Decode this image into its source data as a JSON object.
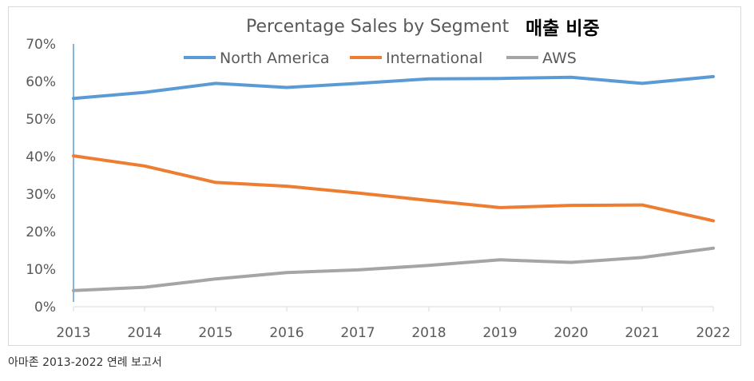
{
  "korean_title": "매출 비중",
  "caption": "아마존 2013-2022 연례 보고서",
  "chart_data": {
    "type": "line",
    "title": "Percentage Sales by Segment",
    "x": [
      "2013",
      "2014",
      "2015",
      "2016",
      "2017",
      "2018",
      "2019",
      "2020",
      "2021",
      "2022"
    ],
    "xlabel": "",
    "ylabel": "",
    "ylim": [
      0,
      70
    ],
    "yticks": [
      "0%",
      "10%",
      "20%",
      "30%",
      "40%",
      "50%",
      "60%",
      "70%"
    ],
    "grid": false,
    "legend_position": "top",
    "series": [
      {
        "name": "North America",
        "color": "#5b9bd5",
        "values": [
          55.5,
          57.1,
          59.5,
          58.4,
          59.5,
          60.7,
          60.8,
          61.1,
          59.5,
          61.3
        ]
      },
      {
        "name": "International",
        "color": "#ed7d31",
        "values": [
          40.2,
          37.5,
          33.1,
          32.1,
          30.3,
          28.3,
          26.4,
          27.0,
          27.1,
          22.9
        ]
      },
      {
        "name": "AWS",
        "color": "#a5a5a5",
        "values": [
          4.3,
          5.2,
          7.4,
          9.1,
          9.8,
          11.0,
          12.5,
          11.8,
          13.1,
          15.6
        ]
      }
    ]
  }
}
